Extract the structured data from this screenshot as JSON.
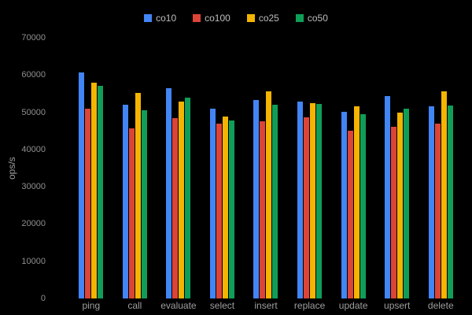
{
  "chart_data": {
    "type": "bar",
    "title": "",
    "xlabel": "",
    "ylabel": "ops/s",
    "ylim": [
      0,
      70000
    ],
    "yticks": [
      0,
      10000,
      20000,
      30000,
      40000,
      50000,
      60000,
      70000
    ],
    "grid": false,
    "legend_position": "top",
    "background_color": "#000000",
    "axis_text_color": "#9e9e9e",
    "tick_text_color": "#8f8f8f",
    "legend_text_color": "#bdbdbd",
    "categories": [
      "ping",
      "call",
      "evaluate",
      "select",
      "insert",
      "replace",
      "update",
      "upsert",
      "delete"
    ],
    "series": [
      {
        "name": "co10",
        "color": "#4285F4",
        "values": [
          60800,
          52000,
          56400,
          50900,
          53300,
          52800,
          50200,
          54300,
          51500
        ]
      },
      {
        "name": "co100",
        "color": "#DB4437",
        "values": [
          51000,
          45600,
          48500,
          46900,
          47500,
          48600,
          45000,
          46100,
          47000
        ]
      },
      {
        "name": "co25",
        "color": "#F4B400",
        "values": [
          57900,
          55300,
          52800,
          48800,
          55700,
          52400,
          51600,
          50000,
          55600
        ]
      },
      {
        "name": "co50",
        "color": "#0F9D58",
        "values": [
          57100,
          50500,
          54000,
          47900,
          52100,
          52300,
          49500,
          51000,
          51900
        ]
      }
    ]
  }
}
